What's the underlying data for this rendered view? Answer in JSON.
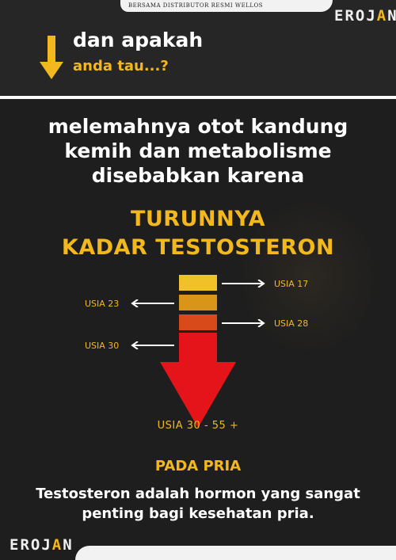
{
  "header": {
    "tab_text": "BERSAMA DISTRIBUTOR RESMI WELLOS",
    "logo_main": "EROJ",
    "logo_accent": "A",
    "logo_end": "N"
  },
  "intro": {
    "line1": "dan apakah",
    "line2": "anda tau...?"
  },
  "headline": {
    "line1": "melemahnya otot kandung",
    "line2": "kemih dan metabolisme",
    "line3": "disebabkan karena"
  },
  "title": {
    "line1": "TURUNNYA",
    "line2": "KADAR TESTOSTERON"
  },
  "ages": {
    "a17": "USIA 17",
    "a23": "USIA 23",
    "a28": "USIA 28",
    "a30": "USIA 30",
    "final": "USIA 30 - 55 +"
  },
  "bottom": {
    "heading": "PADA PRIA",
    "line1": "Testosteron adalah hormon yang sangat",
    "line2": "penting bagi kesehatan pria."
  },
  "colors": {
    "accent": "#f3b81e",
    "bar1": "#f0c128",
    "bar2": "#d9951a",
    "bar3": "#d94a1a",
    "arrow_red": "#e5141a"
  }
}
